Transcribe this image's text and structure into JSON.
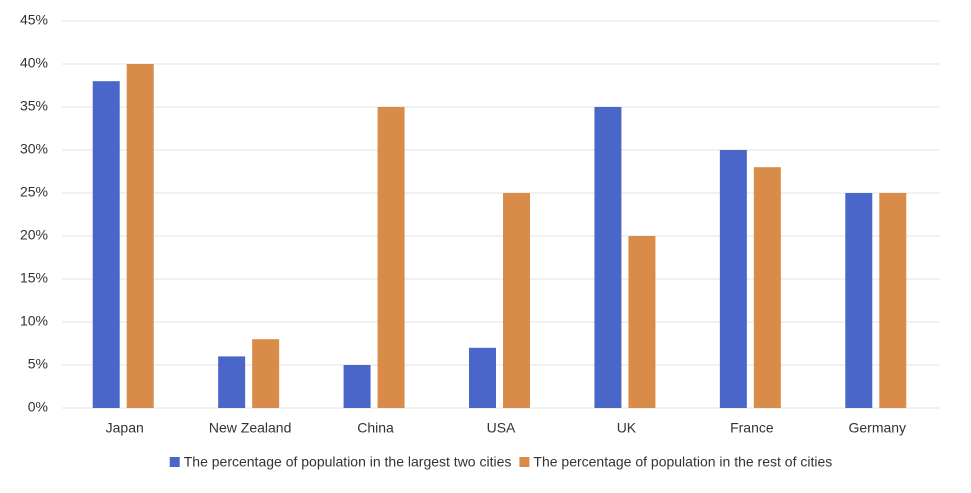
{
  "chart_data": {
    "type": "bar",
    "categories": [
      "Japan",
      "New Zealand",
      "China",
      "USA",
      "UK",
      "France",
      "Germany"
    ],
    "series": [
      {
        "name": "The percentage of population in the largest two cities",
        "color": "#4a66c8",
        "values": [
          38,
          6,
          5,
          7,
          35,
          30,
          25
        ]
      },
      {
        "name": "The percentage of population in the rest of cities",
        "color": "#d98c4a",
        "values": [
          40,
          8,
          35,
          25,
          20,
          28,
          25
        ]
      }
    ],
    "ylim": [
      0,
      45
    ],
    "yticks": [
      {
        "value": 0,
        "label": "0%"
      },
      {
        "value": 5,
        "label": "5%"
      },
      {
        "value": 10,
        "label": "10%"
      },
      {
        "value": 15,
        "label": "15%"
      },
      {
        "value": 20,
        "label": "20%"
      },
      {
        "value": 25,
        "label": "25%"
      },
      {
        "value": 30,
        "label": "30%"
      },
      {
        "value": 35,
        "label": "35%"
      },
      {
        "value": 40,
        "label": "40%"
      },
      {
        "value": 45,
        "label": "45%"
      }
    ],
    "grid": true,
    "legend": "bottom"
  }
}
